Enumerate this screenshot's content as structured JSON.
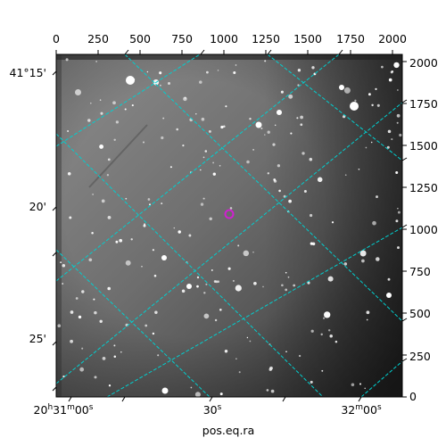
{
  "figure": {
    "xlabel": "pos.eq.ra",
    "top_ticks": [
      "0",
      "250",
      "500",
      "750",
      "1000",
      "1250",
      "1500",
      "1750",
      "2000"
    ],
    "right_ticks": [
      "0",
      "250",
      "500",
      "750",
      "1000",
      "1250",
      "1500",
      "1750",
      "2000"
    ],
    "bottom_ticks": [
      "20h31m00s",
      "30s",
      "32m00s"
    ],
    "left_ticks": [
      "41°15'",
      "20'",
      "25'"
    ],
    "colors": {
      "grid": "#00cfcf",
      "marker": "#d020d0",
      "background": "#ffffff",
      "sky_light": "#8a8a8a",
      "sky_dark": "#2a2a2a"
    },
    "marker_icon": "target-circle-icon"
  }
}
